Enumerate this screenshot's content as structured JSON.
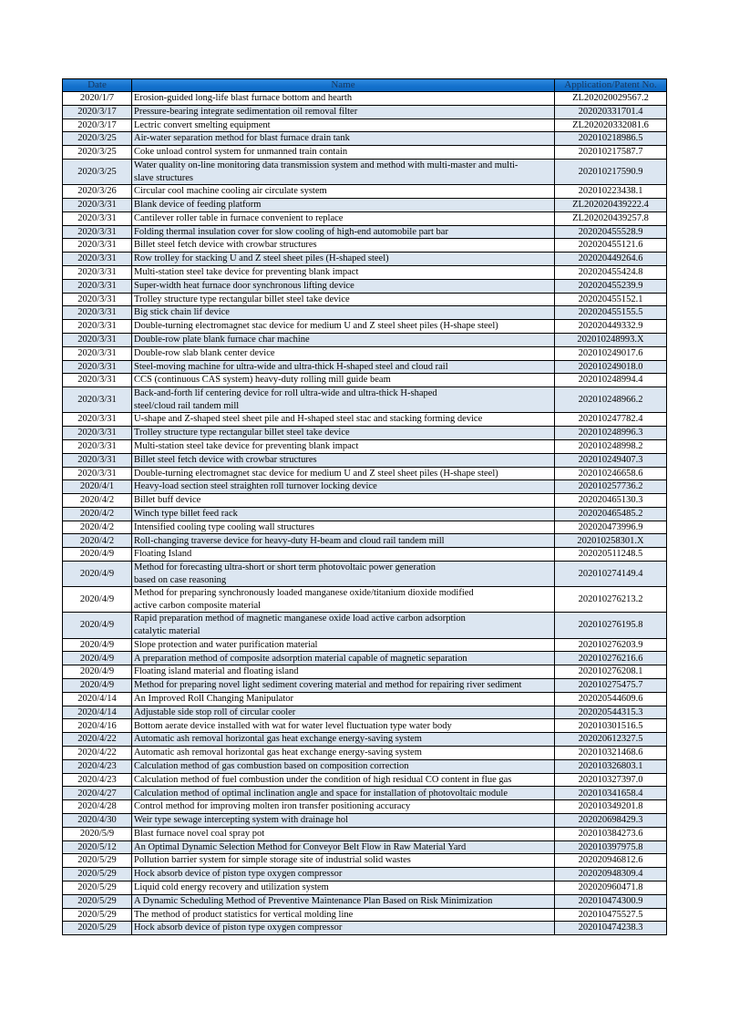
{
  "colors": {
    "header_bg": "#1371cd",
    "header_text": "#17375e",
    "stripe_bg": "#dce6f1",
    "row_bg": "#ffffff",
    "border": "#000000"
  },
  "table": {
    "headers": [
      "Date",
      "Name",
      "Application/Patent No."
    ],
    "rows": [
      {
        "date": "2020/1/7",
        "name": "Erosion-guided long-life blast furnace bottom and hearth",
        "no": "ZL202020029567.2"
      },
      {
        "date": "2020/3/17",
        "name": "Pressure-bearing integrate sedimentation oil removal filter",
        "no": "202020331701.4"
      },
      {
        "date": "2020/3/17",
        "name": "Lectric convert smelting equipment",
        "no": "ZL202020332081.6"
      },
      {
        "date": "2020/3/25",
        "name": "Air-water separation method for blast furnace drain tank",
        "no": "202010218986.5"
      },
      {
        "date": "2020/3/25",
        "name": "Coke unload control system for unmanned train contain",
        "no": "202010217587.7"
      },
      {
        "date": "2020/3/25",
        "name": "Water quality on-line monitoring data transmission system and method with multi-master and multi-\nslave structures",
        "no": "202010217590.9"
      },
      {
        "date": "2020/3/26",
        "name": "Circular cool machine cooling air circulate system",
        "no": "202010223438.1"
      },
      {
        "date": "2020/3/31",
        "name": "Blank device of feeding platform",
        "no": "ZL202020439222.4"
      },
      {
        "date": "2020/3/31",
        "name": "Cantilever roller table in furnace convenient to replace",
        "no": "ZL202020439257.8"
      },
      {
        "date": "2020/3/31",
        "name": "Folding thermal insulation cover for slow cooling of high-end automobile part bar",
        "no": "202020455528.9"
      },
      {
        "date": "2020/3/31",
        "name": "Billet steel fetch device with crowbar structures",
        "no": "202020455121.6"
      },
      {
        "date": "2020/3/31",
        "name": "Row trolley for stacking U and Z steel sheet piles (H-shaped steel)",
        "no": "202020449264.6"
      },
      {
        "date": "2020/3/31",
        "name": "Multi-station steel take device for preventing blank impact",
        "no": "202020455424.8"
      },
      {
        "date": "2020/3/31",
        "name": "Super-width heat furnace door synchronous lifting device",
        "no": "202020455239.9"
      },
      {
        "date": "2020/3/31",
        "name": "Trolley structure type rectangular billet steel take device",
        "no": "202020455152.1"
      },
      {
        "date": "2020/3/31",
        "name": "Big stick chain lif device",
        "no": "202020455155.5"
      },
      {
        "date": "2020/3/31",
        "name": "Double-turning electromagnet stac device for medium U and Z steel sheet piles (H-shape steel)",
        "no": "202020449332.9"
      },
      {
        "date": "2020/3/31",
        "name": "Double-row plate blank furnace char machine",
        "no": "202010248993.X"
      },
      {
        "date": "2020/3/31",
        "name": "Double-row slab blank center device",
        "no": "202010249017.6"
      },
      {
        "date": "2020/3/31",
        "name": "Steel-moving machine for ultra-wide and ultra-thick H-shaped steel and cloud rail",
        "no": "202010249018.0"
      },
      {
        "date": "2020/3/31",
        "name": "CCS (continuous CAS system) heavy-duty rolling mill guide beam",
        "no": "202010248994.4"
      },
      {
        "date": "2020/3/31",
        "name": "Back-and-forth lif centering device for roll ultra-wide and ultra-thick H-shaped\nsteel/cloud rail tandem mill",
        "no": "202010248966.2"
      },
      {
        "date": "2020/3/31",
        "name": "U-shape and Z-shaped steel sheet pile and H-shaped steel stac and stacking forming device",
        "no": "202010247782.4"
      },
      {
        "date": "2020/3/31",
        "name": "Trolley structure type rectangular billet steel take device",
        "no": "202010248996.3"
      },
      {
        "date": "2020/3/31",
        "name": "Multi-station steel take device for preventing blank impact",
        "no": "202010248998.2"
      },
      {
        "date": "2020/3/31",
        "name": "Billet steel fetch device with crowbar structures",
        "no": "202010249407.3"
      },
      {
        "date": "2020/3/31",
        "name": "Double-turning electromagnet stac device for medium U and Z steel sheet piles (H-shape steel)",
        "no": "202010246658.6"
      },
      {
        "date": "2020/4/1",
        "name": "Heavy-load section steel straighten roll turnover locking device",
        "no": "202010257736.2"
      },
      {
        "date": "2020/4/2",
        "name": "Billet buff device",
        "no": "202020465130.3"
      },
      {
        "date": "2020/4/2",
        "name": "Winch type billet feed rack",
        "no": "202020465485.2"
      },
      {
        "date": "2020/4/2",
        "name": "Intensified cooling type cooling wall structures",
        "no": "202020473996.9"
      },
      {
        "date": "2020/4/2",
        "name": "Roll-changing traverse device for heavy-duty H-beam and cloud rail tandem mill",
        "no": "202010258301.X"
      },
      {
        "date": "2020/4/9",
        "name": "Floating Island",
        "no": "202020511248.5"
      },
      {
        "date": "2020/4/9",
        "name": "Method for forecasting ultra-short or short term photovoltaic power generation\nbased on case reasoning",
        "no": "202010274149.4"
      },
      {
        "date": "2020/4/9",
        "name": "Method for preparing synchronously loaded manganese oxide/titanium dioxide modified\nactive carbon composite material",
        "no": "202010276213.2"
      },
      {
        "date": "2020/4/9",
        "name": "Rapid preparation method of magnetic manganese oxide load active carbon adsorption\ncatalytic material",
        "no": "202010276195.8"
      },
      {
        "date": "2020/4/9",
        "name": "Slope protection and water purification material",
        "no": "202010276203.9"
      },
      {
        "date": "2020/4/9",
        "name": "A preparation method of composite adsorption material capable of magnetic separation",
        "no": "202010276216.6"
      },
      {
        "date": "2020/4/9",
        "name": "Floating island material and floating island",
        "no": "202010276208.1"
      },
      {
        "date": "2020/4/9",
        "name": "Method for preparing novel light sediment covering material and method for repairing river sediment",
        "no": "202010275475.7"
      },
      {
        "date": "2020/4/14",
        "name": "An Improved Roll Changing Manipulator",
        "no": "202020544609.6"
      },
      {
        "date": "2020/4/14",
        "name": "Adjustable side stop roll of circular cooler",
        "no": "202020544315.3"
      },
      {
        "date": "2020/4/16",
        "name": "Bottom aerate device installed with wat for water level fluctuation type water body",
        "no": "202010301516.5"
      },
      {
        "date": "2020/4/22",
        "name": "Automatic ash removal horizontal gas heat exchange energy-saving system",
        "no": "202020612327.5"
      },
      {
        "date": "2020/4/22",
        "name": "Automatic ash removal horizontal gas heat exchange energy-saving system",
        "no": "202010321468.6"
      },
      {
        "date": "2020/4/23",
        "name": "Calculation method of gas combustion based on composition correction",
        "no": "202010326803.1"
      },
      {
        "date": "2020/4/23",
        "name": "Calculation method of fuel combustion under the condition of high residual CO content in flue gas",
        "no": "202010327397.0"
      },
      {
        "date": "2020/4/27",
        "name": "Calculation method of optimal inclination angle and space for installation of photovoltaic module",
        "no": "202010341658.4"
      },
      {
        "date": "2020/4/28",
        "name": "Control method for improving molten iron transfer positioning accuracy",
        "no": "202010349201.8"
      },
      {
        "date": "2020/4/30",
        "name": "Weir type sewage intercepting system with drainage hol",
        "no": "202020698429.3"
      },
      {
        "date": "2020/5/9",
        "name": "Blast furnace novel coal spray pot",
        "no": "202010384273.6"
      },
      {
        "date": "2020/5/12",
        "name": "An Optimal Dynamic Selection Method for Conveyor Belt Flow in Raw Material Yard",
        "no": "202010397975.8"
      },
      {
        "date": "2020/5/29",
        "name": "Pollution barrier system for simple storage site of industrial solid wastes",
        "no": "202020946812.6"
      },
      {
        "date": "2020/5/29",
        "name": "Hock absorb device of piston type oxygen compressor",
        "no": "202020948309.4"
      },
      {
        "date": "2020/5/29",
        "name": "Liquid cold energy recovery and utilization system",
        "no": "202020960471.8"
      },
      {
        "date": "2020/5/29",
        "name": "A Dynamic Scheduling Method of Preventive Maintenance Plan Based on Risk Minimization",
        "no": "202010474300.9"
      },
      {
        "date": "2020/5/29",
        "name": "The method of product statistics for vertical molding line",
        "no": "202010475527.5"
      },
      {
        "date": "2020/5/29",
        "name": "Hock absorb device of piston type oxygen compressor",
        "no": "202010474238.3"
      }
    ]
  }
}
